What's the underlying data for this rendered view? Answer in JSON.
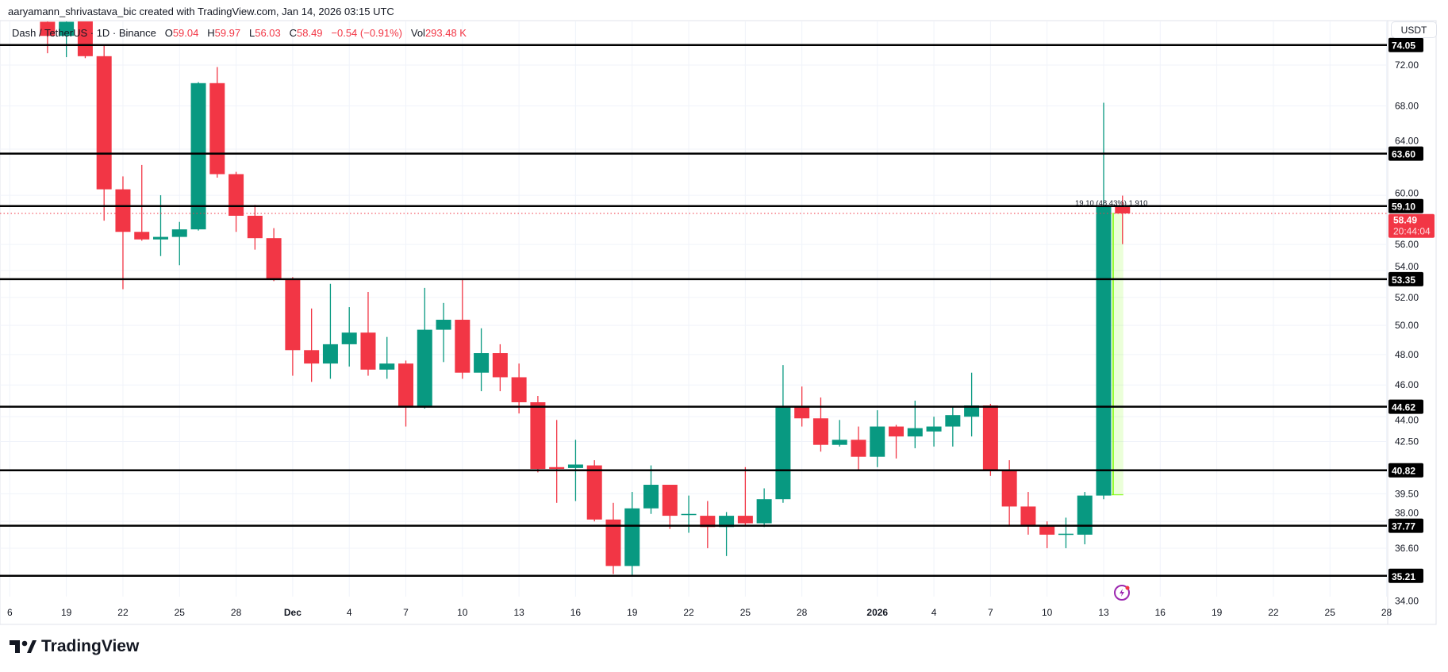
{
  "header": {
    "credit": "aaryamann_shrivastava_bic created with TradingView.com, Jan 14, 2026 03:15 UTC",
    "symbol": "Dash / TetherUS · 1D · Binance",
    "o_label": "O",
    "o": "59.04",
    "h_label": "H",
    "h": "59.97",
    "l_label": "L",
    "l": "56.03",
    "c_label": "C",
    "c": "58.49",
    "change": "−0.54 (−0.91%)",
    "vol_label": "Vol",
    "vol": "293.48 K"
  },
  "axis": {
    "currency": "USDT"
  },
  "price_label": {
    "price": "58.49",
    "countdown": "20:44:04"
  },
  "measure": {
    "text": "19.10 (48.43%) 1,910"
  },
  "footer": {
    "logo": "TradingView"
  },
  "colors": {
    "up": "#089981",
    "down": "#F23645",
    "level": "#000000",
    "measure": "#7CFC00",
    "grid": "#f0f3fa"
  },
  "chart_data": {
    "type": "candlestick",
    "scale": "log",
    "grid": true,
    "ylim": [
      34,
      76
    ],
    "y_ticks": [
      "72.00",
      "68.00",
      "64.00",
      "60.00",
      "56.00",
      "54.00",
      "52.00",
      "50.00",
      "48.00",
      "46.00",
      "44.00",
      "42.50",
      "39.50",
      "38.00",
      "36.60",
      "34.00"
    ],
    "x_ticks": [
      {
        "date": "2025-11-16",
        "label": "6"
      },
      {
        "date": "2025-11-19",
        "label": "19"
      },
      {
        "date": "2025-11-22",
        "label": "22"
      },
      {
        "date": "2025-11-25",
        "label": "25"
      },
      {
        "date": "2025-11-28",
        "label": "28"
      },
      {
        "date": "2025-12-01",
        "label": "Dec"
      },
      {
        "date": "2025-12-04",
        "label": "4"
      },
      {
        "date": "2025-12-07",
        "label": "7"
      },
      {
        "date": "2025-12-10",
        "label": "10"
      },
      {
        "date": "2025-12-13",
        "label": "13"
      },
      {
        "date": "2025-12-16",
        "label": "16"
      },
      {
        "date": "2025-12-19",
        "label": "19"
      },
      {
        "date": "2025-12-22",
        "label": "22"
      },
      {
        "date": "2025-12-25",
        "label": "25"
      },
      {
        "date": "2025-12-28",
        "label": "28"
      },
      {
        "date": "2026-01-01",
        "label": "2026"
      },
      {
        "date": "2026-01-04",
        "label": "4"
      },
      {
        "date": "2026-01-07",
        "label": "7"
      },
      {
        "date": "2026-01-10",
        "label": "10"
      },
      {
        "date": "2026-01-13",
        "label": "13"
      },
      {
        "date": "2026-01-16",
        "label": "16"
      },
      {
        "date": "2026-01-19",
        "label": "19"
      },
      {
        "date": "2026-01-22",
        "label": "22"
      },
      {
        "date": "2026-01-25",
        "label": "25"
      },
      {
        "date": "2026-01-28",
        "label": "28"
      }
    ],
    "levels": [
      74.05,
      63.6,
      59.1,
      53.35,
      44.62,
      40.82,
      37.77,
      35.21
    ],
    "last_price": 58.49,
    "measure": {
      "date_from": "2026-01-13",
      "date_to": "2026-01-14",
      "from": 39.44,
      "to": 58.54
    },
    "candles": [
      {
        "date": "2025-11-18",
        "o": 76.5,
        "h": 78.0,
        "l": 73.2,
        "c": 75.0
      },
      {
        "date": "2025-11-19",
        "o": 75.0,
        "h": 78.0,
        "l": 72.8,
        "c": 76.5
      },
      {
        "date": "2025-11-20",
        "o": 78.0,
        "h": 79.0,
        "l": 72.7,
        "c": 72.9
      },
      {
        "date": "2025-11-21",
        "o": 72.9,
        "h": 74.0,
        "l": 57.9,
        "c": 60.5
      },
      {
        "date": "2025-11-22",
        "o": 60.5,
        "h": 61.6,
        "l": 52.6,
        "c": 57.0
      },
      {
        "date": "2025-11-23",
        "o": 57.0,
        "h": 62.6,
        "l": 56.3,
        "c": 56.4
      },
      {
        "date": "2025-11-24",
        "o": 56.4,
        "h": 60.0,
        "l": 55.1,
        "c": 56.6
      },
      {
        "date": "2025-11-25",
        "o": 56.6,
        "h": 57.8,
        "l": 54.4,
        "c": 57.2
      },
      {
        "date": "2025-11-26",
        "o": 57.2,
        "h": 70.3,
        "l": 57.1,
        "c": 70.2
      },
      {
        "date": "2025-11-27",
        "o": 70.2,
        "h": 71.8,
        "l": 61.5,
        "c": 61.8
      },
      {
        "date": "2025-11-28",
        "o": 61.8,
        "h": 62.0,
        "l": 57.0,
        "c": 58.3
      },
      {
        "date": "2025-11-29",
        "o": 58.3,
        "h": 59.2,
        "l": 55.6,
        "c": 56.5
      },
      {
        "date": "2025-11-30",
        "o": 56.5,
        "h": 57.3,
        "l": 53.2,
        "c": 53.4
      },
      {
        "date": "2025-12-01",
        "o": 53.4,
        "h": 53.5,
        "l": 46.6,
        "c": 48.3
      },
      {
        "date": "2025-12-02",
        "o": 48.3,
        "h": 51.2,
        "l": 46.2,
        "c": 47.4
      },
      {
        "date": "2025-12-03",
        "o": 47.4,
        "h": 53.0,
        "l": 46.4,
        "c": 48.7
      },
      {
        "date": "2025-12-04",
        "o": 48.7,
        "h": 51.3,
        "l": 47.2,
        "c": 49.5
      },
      {
        "date": "2025-12-05",
        "o": 49.5,
        "h": 52.4,
        "l": 46.6,
        "c": 47.0
      },
      {
        "date": "2025-12-06",
        "o": 47.0,
        "h": 49.2,
        "l": 46.4,
        "c": 47.4
      },
      {
        "date": "2025-12-07",
        "o": 47.4,
        "h": 47.6,
        "l": 43.4,
        "c": 44.6
      },
      {
        "date": "2025-12-08",
        "o": 44.6,
        "h": 52.7,
        "l": 44.5,
        "c": 49.7
      },
      {
        "date": "2025-12-09",
        "o": 49.7,
        "h": 51.6,
        "l": 47.5,
        "c": 50.4
      },
      {
        "date": "2025-12-10",
        "o": 50.4,
        "h": 53.4,
        "l": 46.4,
        "c": 46.8
      },
      {
        "date": "2025-12-11",
        "o": 46.8,
        "h": 49.8,
        "l": 45.6,
        "c": 48.1
      },
      {
        "date": "2025-12-12",
        "o": 48.1,
        "h": 48.7,
        "l": 45.6,
        "c": 46.5
      },
      {
        "date": "2025-12-13",
        "o": 46.5,
        "h": 47.4,
        "l": 44.2,
        "c": 44.9
      },
      {
        "date": "2025-12-14",
        "o": 44.9,
        "h": 45.3,
        "l": 40.7,
        "c": 40.9
      },
      {
        "date": "2025-12-15",
        "o": 41.0,
        "h": 43.8,
        "l": 39.0,
        "c": 40.9
      },
      {
        "date": "2025-12-16",
        "o": 40.95,
        "h": 42.6,
        "l": 39.1,
        "c": 41.15
      },
      {
        "date": "2025-12-17",
        "o": 41.1,
        "h": 41.4,
        "l": 38.0,
        "c": 38.1
      },
      {
        "date": "2025-12-18",
        "o": 38.1,
        "h": 39.0,
        "l": 35.3,
        "c": 35.7
      },
      {
        "date": "2025-12-19",
        "o": 35.7,
        "h": 39.6,
        "l": 35.2,
        "c": 38.7
      },
      {
        "date": "2025-12-20",
        "o": 38.7,
        "h": 41.1,
        "l": 38.4,
        "c": 40.0
      },
      {
        "date": "2025-12-21",
        "o": 40.0,
        "h": 40.0,
        "l": 37.6,
        "c": 38.3
      },
      {
        "date": "2025-12-22",
        "o": 38.35,
        "h": 39.4,
        "l": 37.4,
        "c": 38.4
      },
      {
        "date": "2025-12-23",
        "o": 38.3,
        "h": 39.1,
        "l": 36.6,
        "c": 37.7
      },
      {
        "date": "2025-12-24",
        "o": 37.7,
        "h": 38.5,
        "l": 36.2,
        "c": 38.3
      },
      {
        "date": "2025-12-25",
        "o": 38.3,
        "h": 41.0,
        "l": 37.8,
        "c": 37.9
      },
      {
        "date": "2025-12-26",
        "o": 37.9,
        "h": 39.8,
        "l": 37.7,
        "c": 39.2
      },
      {
        "date": "2025-12-27",
        "o": 39.2,
        "h": 47.3,
        "l": 39.0,
        "c": 44.6
      },
      {
        "date": "2025-12-28",
        "o": 44.6,
        "h": 45.9,
        "l": 43.4,
        "c": 43.9
      },
      {
        "date": "2025-12-29",
        "o": 43.9,
        "h": 45.2,
        "l": 41.9,
        "c": 42.3
      },
      {
        "date": "2025-12-30",
        "o": 42.3,
        "h": 43.8,
        "l": 42.2,
        "c": 42.6
      },
      {
        "date": "2025-12-31",
        "o": 42.6,
        "h": 43.4,
        "l": 40.8,
        "c": 41.6
      },
      {
        "date": "2026-01-01",
        "o": 41.6,
        "h": 44.4,
        "l": 41.0,
        "c": 43.4
      },
      {
        "date": "2026-01-02",
        "o": 43.4,
        "h": 43.5,
        "l": 41.5,
        "c": 42.8
      },
      {
        "date": "2026-01-03",
        "o": 42.8,
        "h": 45.0,
        "l": 42.1,
        "c": 43.3
      },
      {
        "date": "2026-01-04",
        "o": 43.1,
        "h": 44.0,
        "l": 42.2,
        "c": 43.4
      },
      {
        "date": "2026-01-05",
        "o": 43.4,
        "h": 44.6,
        "l": 42.2,
        "c": 44.1
      },
      {
        "date": "2026-01-06",
        "o": 44.0,
        "h": 46.8,
        "l": 42.8,
        "c": 44.7
      },
      {
        "date": "2026-01-07",
        "o": 44.7,
        "h": 44.8,
        "l": 40.5,
        "c": 40.85
      },
      {
        "date": "2026-01-08",
        "o": 40.85,
        "h": 41.4,
        "l": 37.8,
        "c": 38.8
      },
      {
        "date": "2026-01-09",
        "o": 38.8,
        "h": 39.6,
        "l": 37.3,
        "c": 37.8
      },
      {
        "date": "2026-01-10",
        "o": 37.8,
        "h": 38.0,
        "l": 36.6,
        "c": 37.3
      },
      {
        "date": "2026-01-11",
        "o": 37.3,
        "h": 38.2,
        "l": 36.6,
        "c": 37.35
      },
      {
        "date": "2026-01-12",
        "o": 37.3,
        "h": 39.6,
        "l": 36.8,
        "c": 39.4
      },
      {
        "date": "2026-01-13",
        "o": 39.4,
        "h": 68.3,
        "l": 39.2,
        "c": 59.04
      },
      {
        "date": "2026-01-14",
        "o": 59.04,
        "h": 59.97,
        "l": 56.03,
        "c": 58.49
      }
    ]
  }
}
